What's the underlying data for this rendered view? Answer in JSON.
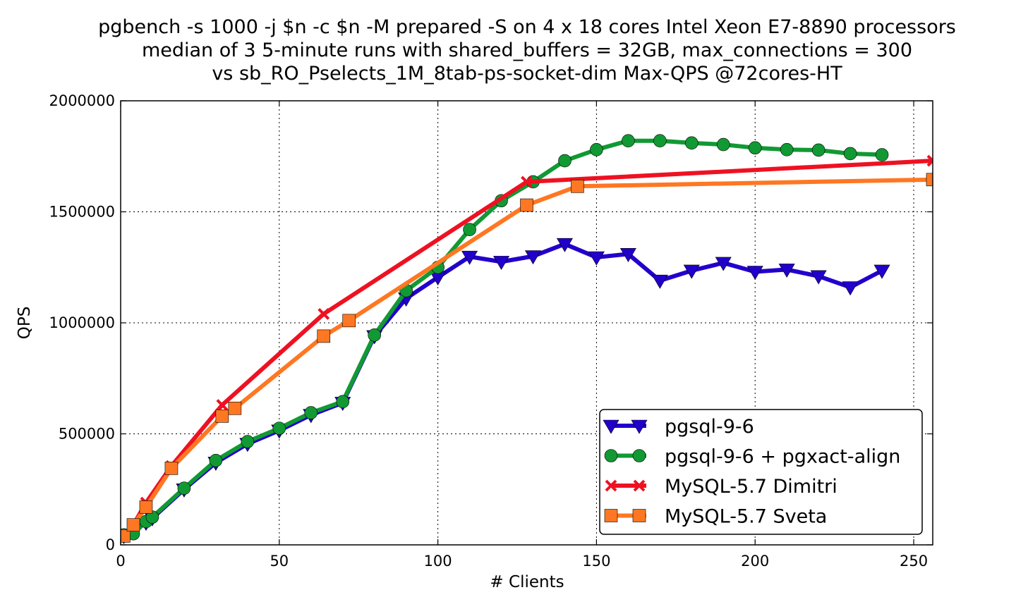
{
  "chart_data": {
    "type": "line",
    "title_lines": [
      "pgbench -s 1000 -j $n -c $n -M prepared -S on 4 x 18 cores Intel Xeon E7-8890 processors",
      "median of 3 5-minute runs with shared_buffers = 32GB, max_connections = 300",
      "vs sb_RO_Pselects_1M_8tab-ps-socket-dim Max-QPS @72cores-HT"
    ],
    "xlabel": "# Clients",
    "ylabel": "QPS",
    "xlim": [
      0,
      256
    ],
    "ylim": [
      0,
      2000000
    ],
    "xticks": [
      0,
      50,
      100,
      150,
      200,
      250
    ],
    "yticks": [
      0,
      500000,
      1000000,
      1500000,
      2000000
    ],
    "xtick_labels": [
      "0",
      "50",
      "100",
      "150",
      "200",
      "250"
    ],
    "ytick_labels": [
      "0",
      "500000",
      "1000000",
      "1500000",
      "2000000"
    ],
    "grid": true,
    "legend_position": "lower-right",
    "series": [
      {
        "name": "pgsql-9-6",
        "color": "#2200cc",
        "marker": "triangle-down",
        "x": [
          1,
          8,
          10,
          20,
          30,
          40,
          50,
          60,
          70,
          80,
          90,
          100,
          110,
          120,
          130,
          140,
          150,
          160,
          170,
          180,
          190,
          200,
          210,
          220,
          230,
          240
        ],
        "y": [
          40000,
          100000,
          120000,
          250000,
          370000,
          455000,
          515000,
          585000,
          640000,
          940000,
          1110000,
          1205000,
          1298000,
          1275000,
          1300000,
          1355000,
          1295000,
          1310000,
          1190000,
          1235000,
          1270000,
          1230000,
          1240000,
          1210000,
          1160000,
          1235000
        ]
      },
      {
        "name": "pgsql-9-6 + pgxact-align",
        "color": "#119933",
        "marker": "circle",
        "x": [
          1,
          4,
          8,
          10,
          20,
          30,
          40,
          50,
          60,
          70,
          80,
          90,
          100,
          110,
          120,
          130,
          140,
          150,
          160,
          170,
          180,
          190,
          200,
          210,
          220,
          230,
          240
        ],
        "y": [
          45000,
          50000,
          105000,
          125000,
          255000,
          380000,
          465000,
          525000,
          595000,
          645000,
          945000,
          1145000,
          1250000,
          1420000,
          1550000,
          1635000,
          1730000,
          1780000,
          1820000,
          1820000,
          1810000,
          1803000,
          1788000,
          1780000,
          1778000,
          1762000,
          1757000
        ]
      },
      {
        "name": "MySQL-5.7 Dimitri",
        "color": "#ee1122",
        "marker": "x",
        "x": [
          1,
          4,
          8,
          16,
          32,
          64,
          128,
          256
        ],
        "y": [
          40000,
          90000,
          190000,
          355000,
          630000,
          1040000,
          1635000,
          1730000
        ]
      },
      {
        "name": "MySQL-5.7 Sveta",
        "color": "#ff7722",
        "marker": "square",
        "x": [
          1,
          4,
          8,
          16,
          32,
          36,
          64,
          72,
          128,
          144,
          256
        ],
        "y": [
          40000,
          90000,
          170000,
          345000,
          580000,
          615000,
          940000,
          1010000,
          1530000,
          1615000,
          1645000
        ]
      }
    ]
  }
}
